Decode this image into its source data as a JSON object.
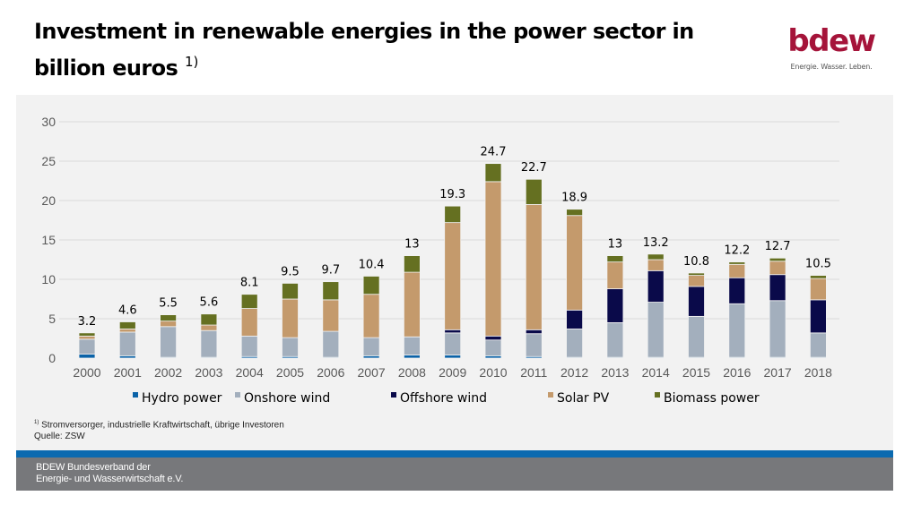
{
  "header": {
    "title_line1": "Investment in renewable energies in the power sector in",
    "title_line2": "billion euros",
    "title_footnote_mark": "1)",
    "logo_word": "bdew",
    "logo_tagline": "Energie. Wasser. Leben."
  },
  "footnote": {
    "mark": "1)",
    "text": "Stromversorger, industrielle Kraftwirtschaft, übrige Investoren",
    "source": "Quelle: ZSW"
  },
  "footer": {
    "line1": "BDEW Bundesverband der",
    "line2": "Energie- und Wasserwirtschaft e.V."
  },
  "colors": {
    "hydro": "#0b63a8",
    "onshore": "#a3afbd",
    "offshore": "#0a0a4a",
    "solar": "#c49a6c",
    "biomass": "#657021",
    "brand": "#a5143a",
    "footer_blue": "#0b6ab0",
    "footer_gray": "#77787b"
  },
  "chart_data": {
    "type": "bar",
    "stacked": true,
    "title": "Investment in renewable energies in the power sector in billion euros",
    "xlabel": "",
    "ylabel": "",
    "ylim": [
      0,
      30
    ],
    "yticks": [
      0,
      5,
      10,
      15,
      20,
      25,
      30
    ],
    "grid": true,
    "legend_position": "bottom",
    "categories": [
      "2000",
      "2001",
      "2002",
      "2003",
      "2004",
      "2005",
      "2006",
      "2007",
      "2008",
      "2009",
      "2010",
      "2011",
      "2012",
      "2013",
      "2014",
      "2015",
      "2016",
      "2017",
      "2018"
    ],
    "totals": [
      3.2,
      4.6,
      5.5,
      5.6,
      8.1,
      9.5,
      9.7,
      10.4,
      13,
      19.3,
      24.7,
      22.7,
      18.9,
      13,
      13.2,
      10.8,
      12.2,
      12.7,
      10.5
    ],
    "total_labels": [
      "3.2",
      "4.6",
      "5.5",
      "5.6",
      "8.1",
      "9.5",
      "9.7",
      "10.4",
      "13",
      "19.3",
      "24.7",
      "22.7",
      "18.9",
      "13",
      "13.2",
      "10.8",
      "12.2",
      "12.7",
      "10.5"
    ],
    "series": [
      {
        "name": "Hydro power",
        "key": "hydro",
        "values": [
          0.5,
          0.3,
          0.1,
          0.1,
          0.2,
          0.2,
          0.1,
          0.3,
          0.4,
          0.4,
          0.3,
          0.2,
          0.1,
          0.1,
          0.1,
          0.1,
          0.1,
          0.1,
          0.1
        ]
      },
      {
        "name": "Onshore wind",
        "key": "onshore",
        "values": [
          1.9,
          3.0,
          3.9,
          3.4,
          2.6,
          2.4,
          3.3,
          2.3,
          2.3,
          2.8,
          2.0,
          2.9,
          3.6,
          4.4,
          7.0,
          5.2,
          6.8,
          7.2,
          3.1
        ]
      },
      {
        "name": "Offshore wind",
        "key": "offshore",
        "values": [
          0,
          0,
          0,
          0,
          0,
          0,
          0,
          0,
          0,
          0.4,
          0.5,
          0.5,
          2.4,
          4.3,
          4.0,
          3.8,
          3.3,
          3.3,
          4.2
        ]
      },
      {
        "name": "Solar PV",
        "key": "solar",
        "values": [
          0.4,
          0.4,
          0.7,
          0.7,
          3.5,
          4.9,
          4.0,
          5.5,
          8.2,
          13.6,
          19.6,
          15.9,
          12.0,
          3.4,
          1.4,
          1.4,
          1.7,
          1.7,
          2.7
        ]
      },
      {
        "name": "Biomass power",
        "key": "biomass",
        "values": [
          0.4,
          0.9,
          0.8,
          1.4,
          1.8,
          2.0,
          2.3,
          2.3,
          2.1,
          2.1,
          2.3,
          3.2,
          0.8,
          0.8,
          0.7,
          0.3,
          0.3,
          0.4,
          0.4
        ]
      }
    ]
  }
}
